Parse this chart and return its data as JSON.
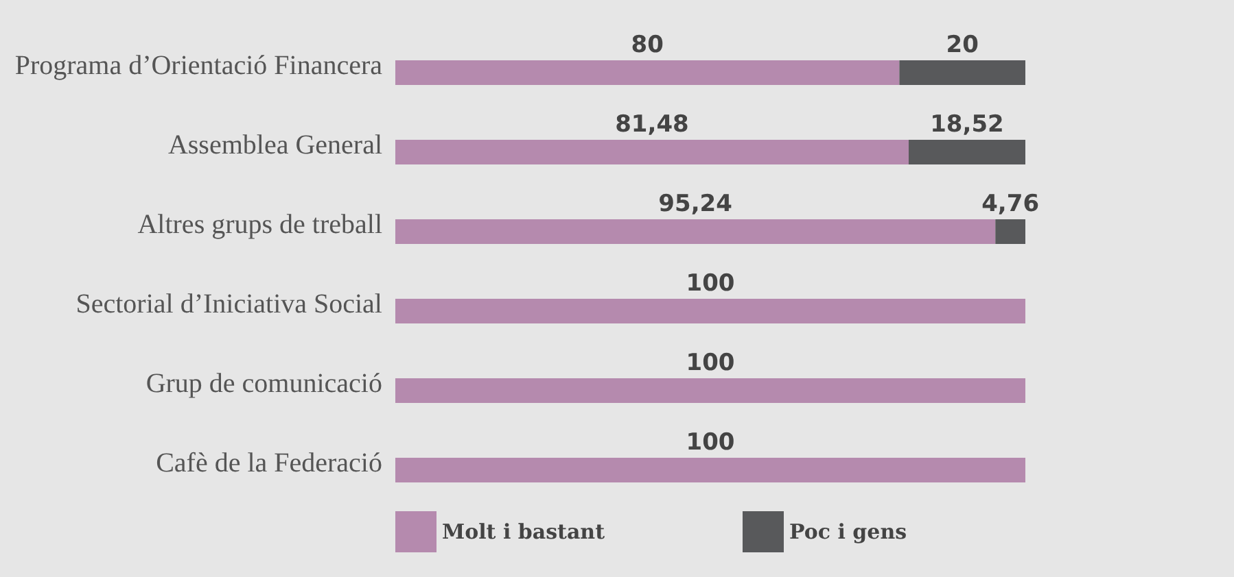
{
  "chart_data": {
    "type": "bar",
    "orientation": "horizontal",
    "stacked": true,
    "categories": [
      "Programa d’Orientació Financera",
      "Assemblea General",
      "Altres grups de treball",
      "Sectorial d’Iniciativa Social",
      "Grup de comunicació",
      "Cafè de la Federació"
    ],
    "series": [
      {
        "name": "Molt i bastant",
        "color": "#b58aae",
        "values": [
          80,
          81.48,
          95.24,
          100,
          100,
          100
        ],
        "value_labels": [
          "80",
          "81,48",
          "95,24",
          "100",
          "100",
          "100"
        ]
      },
      {
        "name": "Poc i gens",
        "color": "#58595b",
        "values": [
          20,
          18.52,
          4.76,
          null,
          null,
          null
        ],
        "value_labels": [
          "20",
          "18,52",
          "4,76",
          null,
          null,
          null
        ]
      }
    ],
    "legend": "bottom",
    "tick_labels": "y"
  }
}
